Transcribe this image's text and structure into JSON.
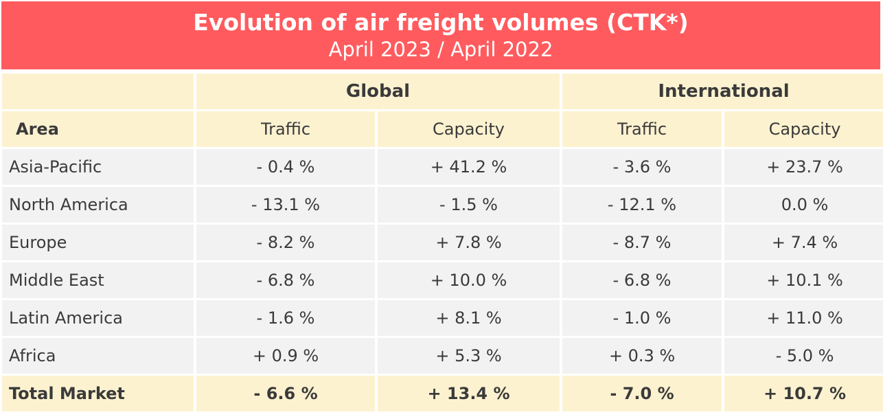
{
  "header": {
    "title": "Evolution of air freight volumes (CTK*)",
    "subtitle": "April 2023 / April 2022"
  },
  "table": {
    "groups": [
      "Global",
      "International"
    ],
    "area_label": "Area",
    "subcolumns": [
      "Traffic",
      "Capacity",
      "Traffic",
      "Capacity"
    ],
    "rows": [
      {
        "area": "Asia-Pacific",
        "values": [
          "- 0.4 %",
          "+ 41.2 %",
          "- 3.6 %",
          "+ 23.7 %"
        ]
      },
      {
        "area": "North America",
        "values": [
          "- 13.1 %",
          "- 1.5 %",
          "- 12.1 %",
          "0.0 %"
        ]
      },
      {
        "area": "Europe",
        "values": [
          "- 8.2 %",
          "+ 7.8 %",
          "- 8.7 %",
          "+ 7.4 %"
        ]
      },
      {
        "area": "Middle East",
        "values": [
          "- 6.8 %",
          "+ 10.0 %",
          "- 6.8 %",
          "+ 10.1 %"
        ]
      },
      {
        "area": "Latin America",
        "values": [
          "- 1.6 %",
          "+ 8.1 %",
          "- 1.0 %",
          "+ 11.0 %"
        ]
      },
      {
        "area": "Africa",
        "values": [
          "+ 0.9 %",
          "+ 5.3 %",
          "+ 0.3 %",
          "- 5.0 %"
        ]
      }
    ],
    "total": {
      "area": "Total Market",
      "values": [
        "- 6.6 %",
        "+ 13.4 %",
        "- 7.0 %",
        "+ 10.7 %"
      ]
    }
  },
  "colors": {
    "banner": "#ff5b5e",
    "header_cells": "#fdf2d0",
    "body_cells": "#f2f2f2"
  }
}
